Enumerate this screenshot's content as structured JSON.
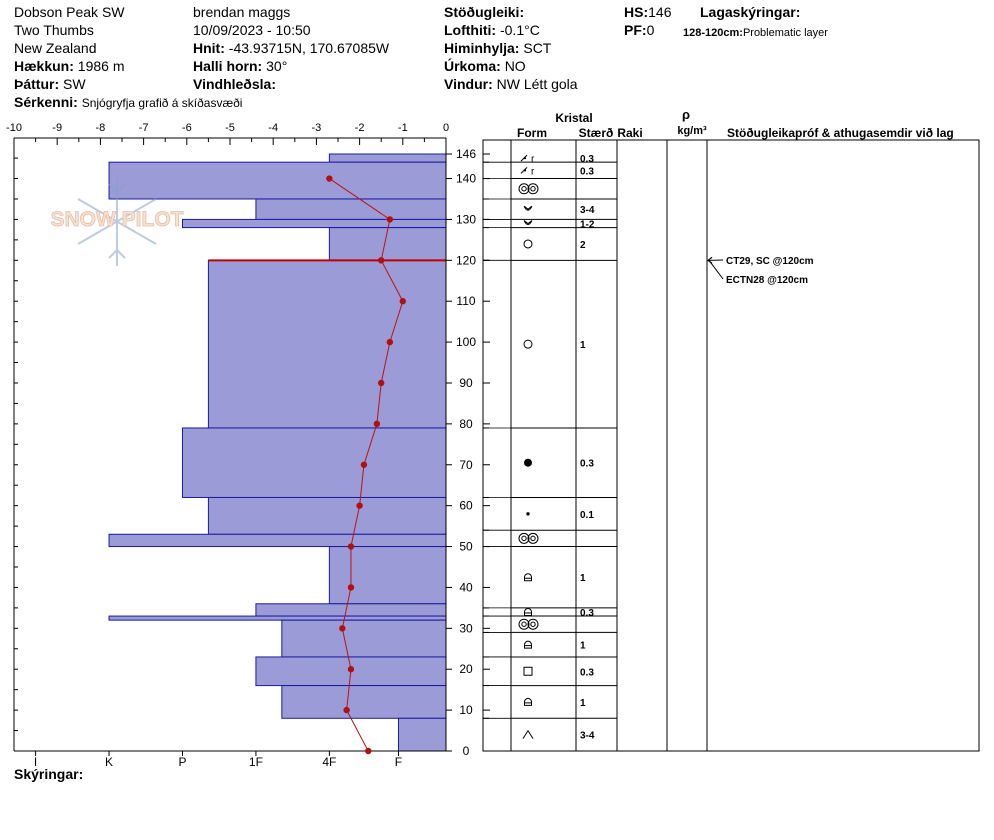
{
  "header": {
    "location": "Dobson Peak SW",
    "subarea": "Two Thumbs",
    "region": "New Zealand",
    "elevation_label": "Hækkun:",
    "elevation": "1986 m",
    "aspect_label": "Þáttur:",
    "aspect": "SW",
    "features_label": "Sérkenni:",
    "features": "Snjógryfja grafið á skíðasvæði",
    "observer": "brendan maggs",
    "datetime": "10/09/2023 - 10:50",
    "coords_label": "Hnit:",
    "coords": "-43.93715N, 170.67085W",
    "slope_label": "Halli horn:",
    "slope": "30°",
    "wind_loading_label": "Vindhleðsla:",
    "stability_label": "Stöðugleiki:",
    "air_temp_label": "Lofthiti:",
    "air_temp": "-0.1°C",
    "sky_label": "Himinhylja:",
    "sky": "SCT",
    "precip_label": "Úrkoma:",
    "precip": "NO",
    "wind_label": "Vindur:",
    "wind": "NW Létt gola",
    "hs_label": "HS:",
    "hs": "146",
    "pf_label": "PF:",
    "pf": "0",
    "layer_notes_label": "Lagaskýringar:",
    "layer_note_range": "128-120cm:",
    "layer_note_text": "Problematic layer"
  },
  "footer": {
    "notes_label": "Skýringar:"
  },
  "logo": {
    "text": "SNOW PILOT"
  },
  "columns": {
    "crystal": "Kristal",
    "form": "Form",
    "size": "Stærð",
    "moisture": "Raki",
    "density_symbol": "ρ",
    "density_unit": "kg/m³",
    "stability": "Stöðugleikapróf & athugasemdir við lag"
  },
  "stability_tests": [
    {
      "label": "CT29, SC @120cm",
      "depth": 120
    },
    {
      "label": "ECTN28 @120cm",
      "depth": 120
    }
  ],
  "problem_layer_depth": 120,
  "chart_data": {
    "type": "bar",
    "temperature_axis": {
      "ticks": [
        -10,
        -9,
        -8,
        -7,
        -6,
        -5,
        -4,
        -3,
        -2,
        -1,
        0
      ],
      "range": [
        -10,
        0
      ]
    },
    "height_axis": {
      "ticks": [
        0,
        10,
        20,
        30,
        40,
        50,
        60,
        70,
        80,
        90,
        100,
        110,
        120,
        130,
        140,
        146
      ],
      "range": [
        0,
        146
      ],
      "unit": "cm"
    },
    "hardness_axis": {
      "labels": [
        "I",
        "K",
        "P",
        "1F",
        "4F",
        "F"
      ],
      "positions": [
        -9.5,
        -7.8,
        -6.1,
        -4.4,
        -2.7,
        -1.1
      ]
    },
    "hardness_profile": [
      {
        "bottom": 144,
        "top": 146,
        "hardness_value": -2.7
      },
      {
        "bottom": 135,
        "top": 144,
        "hardness_value": -7.8
      },
      {
        "bottom": 130,
        "top": 135,
        "hardness_value": -4.4
      },
      {
        "bottom": 128,
        "top": 130,
        "hardness_value": -6.1
      },
      {
        "bottom": 120,
        "top": 128,
        "hardness_value": -2.7
      },
      {
        "bottom": 79,
        "top": 120,
        "hardness_value": -5.5
      },
      {
        "bottom": 62,
        "top": 79,
        "hardness_value": -6.1
      },
      {
        "bottom": 53,
        "top": 62,
        "hardness_value": -5.5
      },
      {
        "bottom": 50,
        "top": 53,
        "hardness_value": -7.8
      },
      {
        "bottom": 36,
        "top": 50,
        "hardness_value": -2.7
      },
      {
        "bottom": 33,
        "top": 36,
        "hardness_value": -4.4
      },
      {
        "bottom": 32,
        "top": 33,
        "hardness_value": -7.8
      },
      {
        "bottom": 23,
        "top": 32,
        "hardness_value": -3.8
      },
      {
        "bottom": 16,
        "top": 23,
        "hardness_value": -4.4
      },
      {
        "bottom": 8,
        "top": 16,
        "hardness_value": -3.8
      },
      {
        "bottom": 0,
        "top": 8,
        "hardness_value": -1.1
      }
    ],
    "temperature_profile": [
      {
        "height": 140,
        "temp": -2.7
      },
      {
        "height": 130,
        "temp": -1.3
      },
      {
        "height": 120,
        "temp": -1.5
      },
      {
        "height": 110,
        "temp": -1.0
      },
      {
        "height": 100,
        "temp": -1.3
      },
      {
        "height": 90,
        "temp": -1.5
      },
      {
        "height": 80,
        "temp": -1.6
      },
      {
        "height": 70,
        "temp": -1.9
      },
      {
        "height": 60,
        "temp": -2.0
      },
      {
        "height": 50,
        "temp": -2.2
      },
      {
        "height": 40,
        "temp": -2.2
      },
      {
        "height": 30,
        "temp": -2.4
      },
      {
        "height": 20,
        "temp": -2.2
      },
      {
        "height": 10,
        "temp": -2.3
      },
      {
        "height": 0,
        "temp": -1.8
      }
    ],
    "layers": [
      {
        "top": 146,
        "bottom": 144,
        "form": "decomposing",
        "size": "0.3"
      },
      {
        "top": 144,
        "bottom": 140,
        "form": "decomposing",
        "size": "0.3"
      },
      {
        "top": 140,
        "bottom": 135,
        "form": "melt-forms",
        "size": ""
      },
      {
        "top": 135,
        "bottom": 130,
        "form": "hoar",
        "size": "3-4"
      },
      {
        "top": 130,
        "bottom": 128,
        "form": "hoar",
        "size": "1-2"
      },
      {
        "top": 128,
        "bottom": 120,
        "form": "rounded",
        "size": "2"
      },
      {
        "top": 120,
        "bottom": 79,
        "form": "rounded",
        "size": "1"
      },
      {
        "top": 79,
        "bottom": 62,
        "form": "rounded-dot",
        "size": "0.3"
      },
      {
        "top": 62,
        "bottom": 54,
        "form": "small-dot",
        "size": "0.1"
      },
      {
        "top": 54,
        "bottom": 50,
        "form": "melt-forms",
        "size": ""
      },
      {
        "top": 50,
        "bottom": 35,
        "form": "faceted-rounded",
        "size": "1"
      },
      {
        "top": 35,
        "bottom": 33,
        "form": "faceted-rounded",
        "size": "0.3"
      },
      {
        "top": 33,
        "bottom": 29,
        "form": "melt-forms",
        "size": ""
      },
      {
        "top": 29,
        "bottom": 23,
        "form": "faceted-rounded",
        "size": "1"
      },
      {
        "top": 23,
        "bottom": 16,
        "form": "faceted",
        "size": "0.3"
      },
      {
        "top": 16,
        "bottom": 8,
        "form": "faceted-rounded",
        "size": "1"
      },
      {
        "top": 8,
        "bottom": 0,
        "form": "depth-hoar",
        "size": "3-4"
      }
    ]
  }
}
